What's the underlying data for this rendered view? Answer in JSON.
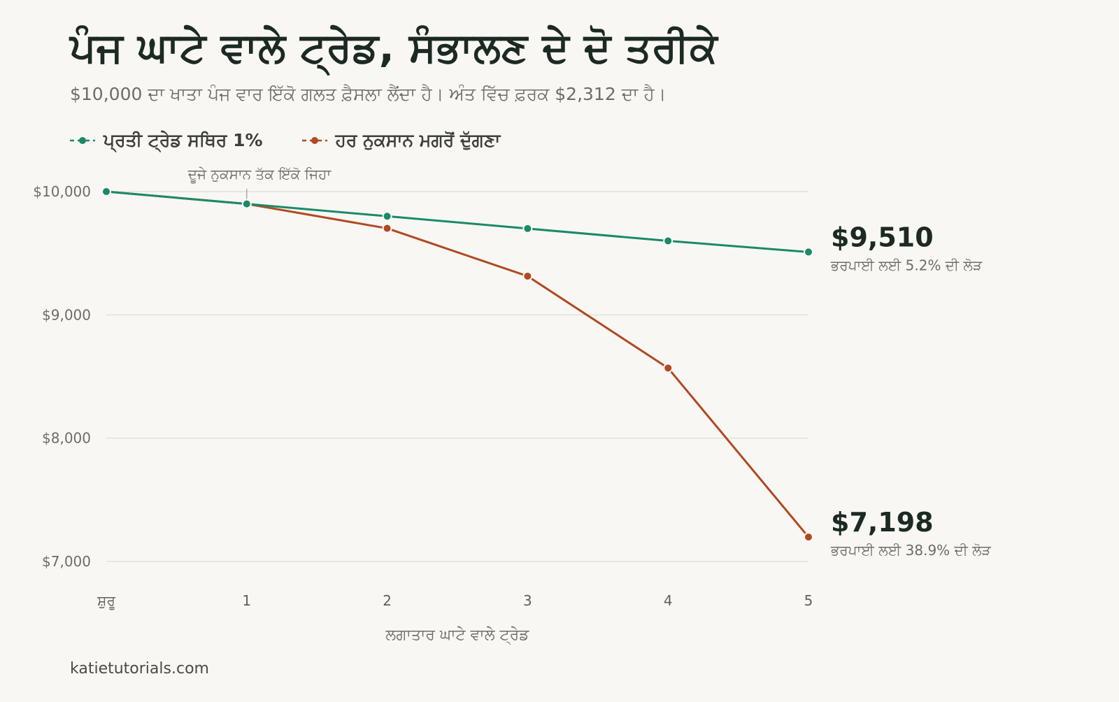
{
  "colors": {
    "background": "#f9f7f3",
    "fixed_series": "#1a8a68",
    "doubling_series": "#b04a22",
    "gridline": "#e3e1dc",
    "muted_text": "#6d6d66"
  },
  "chart_data": {
    "type": "line",
    "title": "ਪੰਜ ਘਾਟੇ ਵਾਲੇ ਟ੍ਰੇਡ, ਸੰਭਾਲਣ ਦੇ ਦੋ ਤਰੀਕੇ",
    "subtitle": "$10,000 ਦਾ ਖਾਤਾ ਪੰਜ ਵਾਰ ਇੱਕੋ ਗਲਤ ਫ਼ੈਸਲਾ ਲੈਂਦਾ ਹੈ। ਅੰਤ ਵਿੱਚ ਫ਼ਰਕ $2,312 ਦਾ ਹੈ।",
    "xlabel": "ਲਗਾਤਾਰ ਘਾਟੇ ਵਾਲੇ ਟ੍ਰੇਡ",
    "ylabel": "",
    "categories": [
      "ਸ਼ੁਰੂ",
      "1",
      "2",
      "3",
      "4",
      "5"
    ],
    "ylim": [
      7000,
      10000
    ],
    "yticks": [
      {
        "value": 10000,
        "label": "$10,000"
      },
      {
        "value": 9000,
        "label": "$9,000"
      },
      {
        "value": 8000,
        "label": "$8,000"
      },
      {
        "value": 7000,
        "label": "$7,000"
      }
    ],
    "grid": true,
    "legend_position": "top-left",
    "series": [
      {
        "name": "ਪ੍ਰਤੀ ਟ੍ਰੇਡ ਸਥਿਰ 1%",
        "color": "#1a8a68",
        "values": [
          10000,
          9900,
          9800,
          9700,
          9600,
          9510
        ],
        "end_label": "$9,510",
        "end_note": "ਭਰਪਾਈ ਲਈ 5.2% ਦੀ ਲੋੜ"
      },
      {
        "name": "ਹਰ ਨੁਕਸਾਨ ਮਗਰੋਂ ਦੁੱਗਣਾ",
        "color": "#b04a22",
        "values": [
          10000,
          9900,
          9702,
          9314,
          8569,
          7198
        ],
        "end_label": "$7,198",
        "end_note": "ਭਰਪਾਈ ਲਈ 38.9% ਦੀ ਲੋੜ"
      }
    ],
    "annotation": {
      "text": "ਦੂਜੇ ਨੁਕਸਾਨ ਤੱਕ ਇੱਕੋ ਜਿਹਾ",
      "category_index": 1
    }
  },
  "source": "katietutorials.com"
}
